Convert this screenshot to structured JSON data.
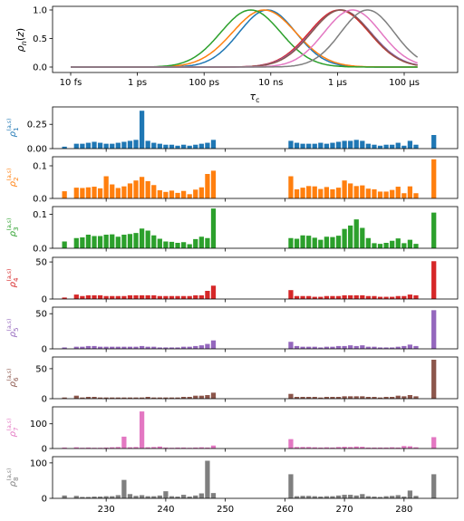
{
  "chart_data": [
    {
      "type": "line",
      "ylabel": "ρ_n(z)",
      "xlabel": "τ_c",
      "x_scale": "log",
      "x_ticks": [
        "10 fs",
        "1 ps",
        "100 ps",
        "10 ns",
        "1 μs",
        "100 μs"
      ],
      "y_ticks": [
        "0.0",
        "0.5",
        "1.0"
      ],
      "ylim": [
        0,
        1.05
      ],
      "grid": false,
      "series": [
        {
          "color": "#1f77b4",
          "peak_log10_s": -8.1,
          "width": 0.85
        },
        {
          "color": "#ff7f0e",
          "peak_log10_s": -8.2,
          "width": 0.95
        },
        {
          "color": "#2ca02c",
          "peak_log10_s": -8.6,
          "width": 0.9
        },
        {
          "color": "#d62728",
          "peak_log10_s": -5.95,
          "width": 0.9
        },
        {
          "color": "#9467bd",
          "peak_log10_s": -5.9,
          "width": 0.9
        },
        {
          "color": "#8c564b",
          "peak_log10_s": -5.9,
          "width": 0.88
        },
        {
          "color": "#e377c2",
          "peak_log10_s": -5.55,
          "width": 0.85
        },
        {
          "color": "#7f7f7f",
          "peak_log10_s": -5.1,
          "width": 0.8
        }
      ]
    },
    {
      "type": "bar",
      "x_ticks": [
        "230",
        "240",
        "250",
        "260",
        "270",
        "280"
      ],
      "xlim": [
        221,
        289
      ],
      "panels": [
        {
          "ylabel": "ρ_1^(a,s)",
          "color": "#1f77b4",
          "ylim": [
            0,
            0.42
          ],
          "y_ticks": [
            "0.00",
            "0.25"
          ],
          "x": [
            223,
            225,
            226,
            227,
            228,
            229,
            230,
            231,
            232,
            233,
            234,
            235,
            236,
            237,
            238,
            239,
            240,
            241,
            242,
            243,
            244,
            245,
            246,
            247,
            248,
            261,
            262,
            263,
            264,
            265,
            266,
            267,
            268,
            269,
            270,
            271,
            272,
            273,
            274,
            275,
            276,
            277,
            278,
            279,
            280,
            281,
            282,
            285
          ],
          "values": [
            0.02,
            0.05,
            0.05,
            0.06,
            0.07,
            0.06,
            0.05,
            0.05,
            0.06,
            0.07,
            0.08,
            0.09,
            0.39,
            0.08,
            0.06,
            0.05,
            0.04,
            0.04,
            0.03,
            0.04,
            0.03,
            0.04,
            0.05,
            0.06,
            0.09,
            0.08,
            0.06,
            0.05,
            0.05,
            0.05,
            0.06,
            0.05,
            0.06,
            0.07,
            0.08,
            0.08,
            0.09,
            0.08,
            0.05,
            0.04,
            0.03,
            0.04,
            0.04,
            0.06,
            0.03,
            0.08,
            0.04,
            0.14
          ]
        },
        {
          "ylabel": "ρ_2^(a,s)",
          "color": "#ff7f0e",
          "ylim": [
            0,
            0.125
          ],
          "y_ticks": [
            "0.0",
            "0.1"
          ],
          "x": [
            223,
            225,
            226,
            227,
            228,
            229,
            230,
            231,
            232,
            233,
            234,
            235,
            236,
            237,
            238,
            239,
            240,
            241,
            242,
            243,
            244,
            245,
            246,
            247,
            248,
            261,
            262,
            263,
            264,
            265,
            266,
            267,
            268,
            269,
            270,
            271,
            272,
            273,
            274,
            275,
            276,
            277,
            278,
            279,
            280,
            281,
            282,
            285
          ],
          "values": [
            0.022,
            0.033,
            0.032,
            0.034,
            0.036,
            0.031,
            0.068,
            0.043,
            0.032,
            0.037,
            0.046,
            0.055,
            0.066,
            0.053,
            0.041,
            0.025,
            0.02,
            0.024,
            0.017,
            0.023,
            0.013,
            0.027,
            0.034,
            0.075,
            0.085,
            0.068,
            0.028,
            0.033,
            0.038,
            0.037,
            0.029,
            0.035,
            0.028,
            0.033,
            0.055,
            0.046,
            0.038,
            0.04,
            0.03,
            0.028,
            0.021,
            0.021,
            0.026,
            0.036,
            0.016,
            0.037,
            0.016,
            0.12
          ]
        },
        {
          "ylabel": "ρ_3^(a,s)",
          "color": "#2ca02c",
          "ylim": [
            0,
            0.12
          ],
          "y_ticks": [
            "0.0",
            "0.1"
          ],
          "x": [
            223,
            225,
            226,
            227,
            228,
            229,
            230,
            231,
            232,
            233,
            234,
            235,
            236,
            237,
            238,
            239,
            240,
            241,
            242,
            243,
            244,
            245,
            246,
            247,
            248,
            261,
            262,
            263,
            264,
            265,
            266,
            267,
            268,
            269,
            270,
            271,
            272,
            273,
            274,
            275,
            276,
            277,
            278,
            279,
            280,
            281,
            282,
            285
          ],
          "values": [
            0.02,
            0.03,
            0.032,
            0.04,
            0.036,
            0.036,
            0.04,
            0.041,
            0.034,
            0.04,
            0.042,
            0.045,
            0.058,
            0.052,
            0.038,
            0.028,
            0.02,
            0.019,
            0.016,
            0.018,
            0.012,
            0.027,
            0.034,
            0.03,
            0.117,
            0.03,
            0.028,
            0.038,
            0.037,
            0.031,
            0.025,
            0.034,
            0.033,
            0.037,
            0.057,
            0.067,
            0.085,
            0.06,
            0.03,
            0.015,
            0.013,
            0.016,
            0.022,
            0.029,
            0.015,
            0.025,
            0.013,
            0.105
          ]
        },
        {
          "ylabel": "ρ_4^(a,s)",
          "color": "#d62728",
          "ylim": [
            0,
            55
          ],
          "y_ticks": [
            "0",
            "50"
          ],
          "x": [
            223,
            225,
            226,
            227,
            228,
            229,
            230,
            231,
            232,
            233,
            234,
            235,
            236,
            237,
            238,
            239,
            240,
            241,
            242,
            243,
            244,
            245,
            246,
            247,
            248,
            261,
            262,
            263,
            264,
            265,
            266,
            267,
            268,
            269,
            270,
            271,
            272,
            273,
            274,
            275,
            276,
            277,
            278,
            279,
            280,
            281,
            282,
            285
          ],
          "values": [
            2,
            6,
            4,
            5,
            5,
            5,
            4,
            4,
            4,
            4,
            5,
            5,
            5,
            5,
            5,
            4,
            4,
            4,
            4,
            4,
            4,
            5,
            5,
            11,
            18,
            12,
            4,
            4,
            4,
            3,
            3,
            4,
            4,
            4,
            5,
            5,
            5,
            5,
            4,
            4,
            3,
            3,
            3,
            4,
            4,
            6,
            5,
            51
          ]
        },
        {
          "ylabel": "ρ_5^(a,s)",
          "color": "#9467bd",
          "ylim": [
            0,
            58
          ],
          "y_ticks": [
            "0",
            "50"
          ],
          "x": [
            223,
            225,
            226,
            227,
            228,
            229,
            230,
            231,
            232,
            233,
            234,
            235,
            236,
            237,
            238,
            239,
            240,
            241,
            242,
            243,
            244,
            245,
            246,
            247,
            248,
            261,
            262,
            263,
            264,
            265,
            266,
            267,
            268,
            269,
            270,
            271,
            272,
            273,
            274,
            275,
            276,
            277,
            278,
            279,
            280,
            281,
            282,
            285
          ],
          "values": [
            2,
            3,
            3,
            4,
            4,
            3,
            3,
            3,
            3,
            3,
            3,
            3,
            4,
            3,
            3,
            2,
            2,
            2,
            2,
            3,
            3,
            4,
            5,
            7,
            12,
            10,
            4,
            3,
            3,
            3,
            2,
            3,
            3,
            4,
            4,
            5,
            4,
            5,
            3,
            3,
            2,
            2,
            2,
            3,
            4,
            6,
            4,
            55
          ]
        },
        {
          "ylabel": "ρ_6^(a,s)",
          "color": "#8c564b",
          "ylim": [
            0,
            68
          ],
          "y_ticks": [
            "0",
            "50"
          ],
          "x": [
            223,
            225,
            226,
            227,
            228,
            229,
            230,
            231,
            232,
            233,
            234,
            235,
            236,
            237,
            238,
            239,
            240,
            241,
            242,
            243,
            244,
            245,
            246,
            247,
            248,
            261,
            262,
            263,
            264,
            265,
            266,
            267,
            268,
            269,
            270,
            271,
            272,
            273,
            274,
            275,
            276,
            277,
            278,
            279,
            280,
            281,
            282,
            285
          ],
          "values": [
            2,
            5,
            2,
            3,
            3,
            2,
            2,
            2,
            2,
            2,
            2,
            2,
            2,
            3,
            2,
            2,
            2,
            2,
            2,
            3,
            3,
            5,
            5,
            6,
            10,
            8,
            3,
            3,
            3,
            3,
            2,
            3,
            3,
            3,
            4,
            4,
            4,
            4,
            3,
            3,
            2,
            3,
            3,
            5,
            4,
            6,
            4,
            65
          ]
        },
        {
          "ylabel": "ρ_7^(a,s)",
          "color": "#e377c2",
          "ylim": [
            0,
            165
          ],
          "y_ticks": [
            "0",
            "100"
          ],
          "x": [
            223,
            225,
            226,
            227,
            228,
            229,
            230,
            231,
            232,
            233,
            234,
            235,
            236,
            237,
            238,
            239,
            240,
            241,
            242,
            243,
            244,
            245,
            246,
            247,
            248,
            261,
            262,
            263,
            264,
            265,
            266,
            267,
            268,
            269,
            270,
            271,
            272,
            273,
            274,
            275,
            276,
            277,
            278,
            279,
            280,
            281,
            282,
            285
          ],
          "values": [
            4,
            5,
            3,
            4,
            3,
            3,
            4,
            5,
            6,
            48,
            5,
            6,
            150,
            5,
            6,
            8,
            4,
            3,
            4,
            4,
            3,
            4,
            5,
            4,
            12,
            38,
            6,
            6,
            6,
            5,
            4,
            5,
            4,
            6,
            7,
            6,
            8,
            7,
            4,
            4,
            4,
            4,
            5,
            4,
            10,
            9,
            5,
            46
          ]
        },
        {
          "ylabel": "ρ_8^(a,s)",
          "color": "#7f7f7f",
          "ylim": [
            0,
            115
          ],
          "y_ticks": [
            "0",
            "100"
          ],
          "x": [
            223,
            225,
            226,
            227,
            228,
            229,
            230,
            231,
            232,
            233,
            234,
            235,
            236,
            237,
            238,
            239,
            240,
            241,
            242,
            243,
            244,
            245,
            246,
            247,
            248,
            261,
            262,
            263,
            264,
            265,
            266,
            267,
            268,
            269,
            270,
            271,
            272,
            273,
            274,
            275,
            276,
            277,
            278,
            279,
            280,
            281,
            282,
            285
          ],
          "values": [
            8,
            7,
            4,
            4,
            5,
            5,
            6,
            6,
            9,
            52,
            12,
            7,
            9,
            6,
            6,
            8,
            20,
            6,
            5,
            10,
            5,
            8,
            14,
            106,
            15,
            68,
            6,
            7,
            7,
            6,
            5,
            6,
            6,
            8,
            10,
            10,
            8,
            12,
            6,
            5,
            4,
            6,
            7,
            9,
            5,
            22,
            7,
            68
          ]
        }
      ]
    }
  ]
}
